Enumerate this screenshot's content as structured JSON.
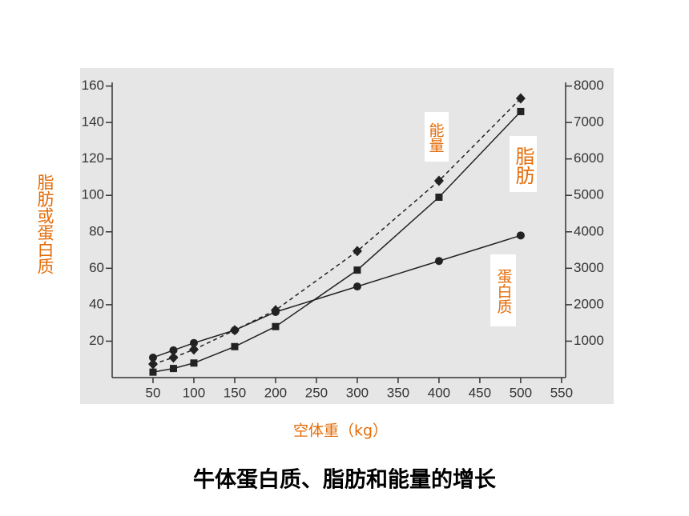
{
  "chart_data": {
    "type": "line",
    "title": "牛体蛋白质、脂肪和能量的增长",
    "x_label": "空体重（kg）",
    "y_label": "脂肪或蛋白质",
    "annotations": [
      "能量",
      "脂肪",
      "蛋白质"
    ],
    "x": [
      50,
      75,
      100,
      150,
      200,
      300,
      400,
      500
    ],
    "xlim": [
      0,
      555
    ],
    "xticks": [
      50,
      100,
      150,
      200,
      250,
      300,
      350,
      400,
      450,
      500,
      550
    ],
    "ylim": [
      0,
      162
    ],
    "yticks": [
      20,
      40,
      60,
      80,
      100,
      120,
      140,
      160
    ],
    "y2lim": [
      0,
      8100
    ],
    "y2ticks": [
      1000,
      2000,
      3000,
      4000,
      5000,
      6000,
      7000,
      8000
    ],
    "series": [
      {
        "name": "能量",
        "color": "#222222",
        "marker": "diamond",
        "dashed": true,
        "axis": "y2",
        "values": [
          370,
          550,
          770,
          1300,
          1850,
          3470,
          5400,
          7660
        ]
      },
      {
        "name": "脂肪",
        "color": "#222222",
        "marker": "square",
        "dashed": false,
        "values": [
          3,
          5,
          8,
          17,
          28,
          59,
          99,
          146
        ]
      },
      {
        "name": "蛋白质",
        "color": "#222222",
        "marker": "circle",
        "dashed": false,
        "values": [
          11,
          15,
          19,
          26,
          36,
          50,
          64,
          78
        ]
      }
    ]
  }
}
